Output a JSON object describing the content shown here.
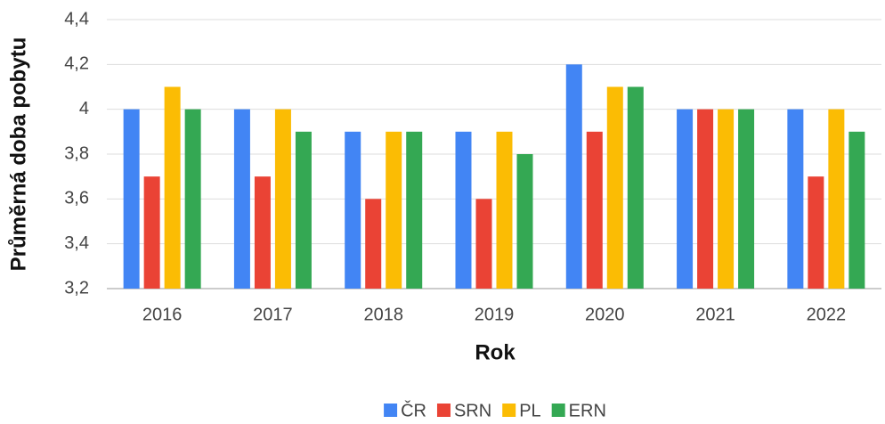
{
  "chart_data": {
    "type": "bar",
    "x_label": "Rok",
    "y_label": "Průměrná doba pobytu",
    "categories": [
      "2016",
      "2017",
      "2018",
      "2019",
      "2020",
      "2021",
      "2022"
    ],
    "series": [
      {
        "name": "ČR",
        "color": "#4285f4",
        "values": [
          4.0,
          4.0,
          3.9,
          3.9,
          4.2,
          4.0,
          4.0
        ]
      },
      {
        "name": "SRN",
        "color": "#ea4335",
        "values": [
          3.7,
          3.7,
          3.6,
          3.6,
          3.9,
          4.0,
          3.7
        ]
      },
      {
        "name": "PL",
        "color": "#fbbc04",
        "values": [
          4.1,
          4.0,
          3.9,
          3.9,
          4.1,
          4.0,
          4.0
        ]
      },
      {
        "name": "ERN",
        "color": "#34a853",
        "values": [
          4.0,
          3.9,
          3.9,
          3.8,
          4.1,
          4.0,
          3.9
        ]
      }
    ],
    "ylim": [
      3.2,
      4.4
    ],
    "yticks": [
      {
        "value": 3.2,
        "label": "3,2"
      },
      {
        "value": 3.4,
        "label": "3,4"
      },
      {
        "value": 3.6,
        "label": "3,6"
      },
      {
        "value": 3.8,
        "label": "3,8"
      },
      4,
      {
        "value": 4.2,
        "label": "4,2"
      },
      {
        "value": 4.4,
        "label": "4,4"
      }
    ],
    "grid": true,
    "legend": "bottom"
  }
}
